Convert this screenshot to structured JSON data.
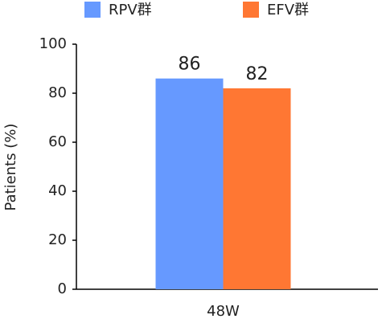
{
  "chart_data": {
    "type": "bar",
    "y_label": "Patients (%)",
    "categories": [
      "48W"
    ],
    "series": [
      {
        "name": "RPV群",
        "color": "#6699ff",
        "values": [
          86
        ]
      },
      {
        "name": "EFV群",
        "color": "#ff7733",
        "values": [
          82
        ]
      }
    ],
    "ylim": [
      0,
      100
    ],
    "yticks": [
      0,
      20,
      40,
      60,
      80,
      100
    ],
    "grid": false,
    "legend": "top"
  }
}
